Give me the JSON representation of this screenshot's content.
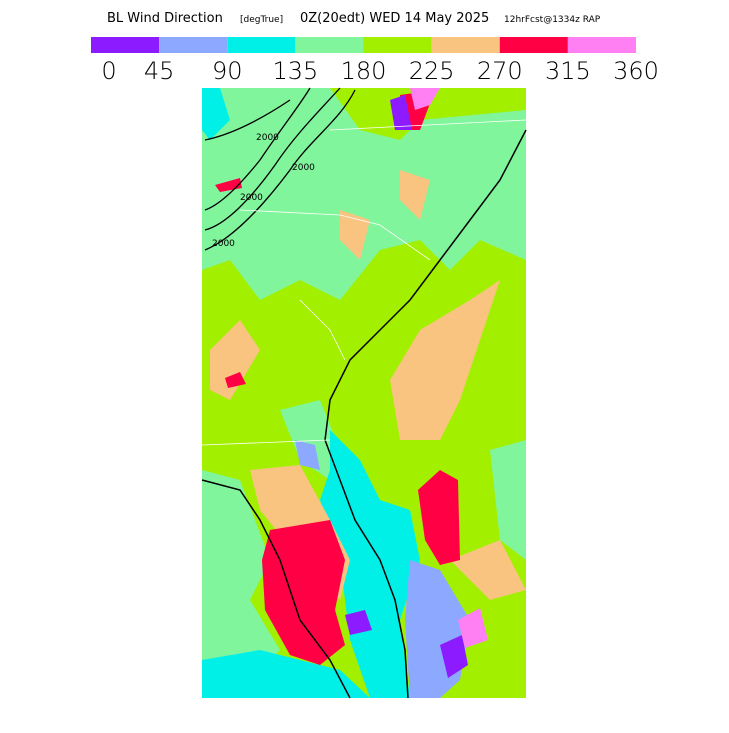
{
  "header": {
    "title": "BL Wind Direction",
    "units": "[degTrue]",
    "valid": "0Z(20edt) WED 14 May 2025",
    "forecast": "12hrFcst@1334z RAP"
  },
  "colorbar": {
    "ticks": [
      0,
      45,
      90,
      135,
      180,
      225,
      270,
      315,
      360
    ],
    "colors": [
      "#8c1cff",
      "#8ca8ff",
      "#00f0e8",
      "#80f59c",
      "#a2f000",
      "#f8c47f",
      "#ff0044",
      "#ff80f2"
    ]
  },
  "map": {
    "contour_labels": [
      "2000",
      "2000",
      "2000",
      "2000"
    ]
  }
}
